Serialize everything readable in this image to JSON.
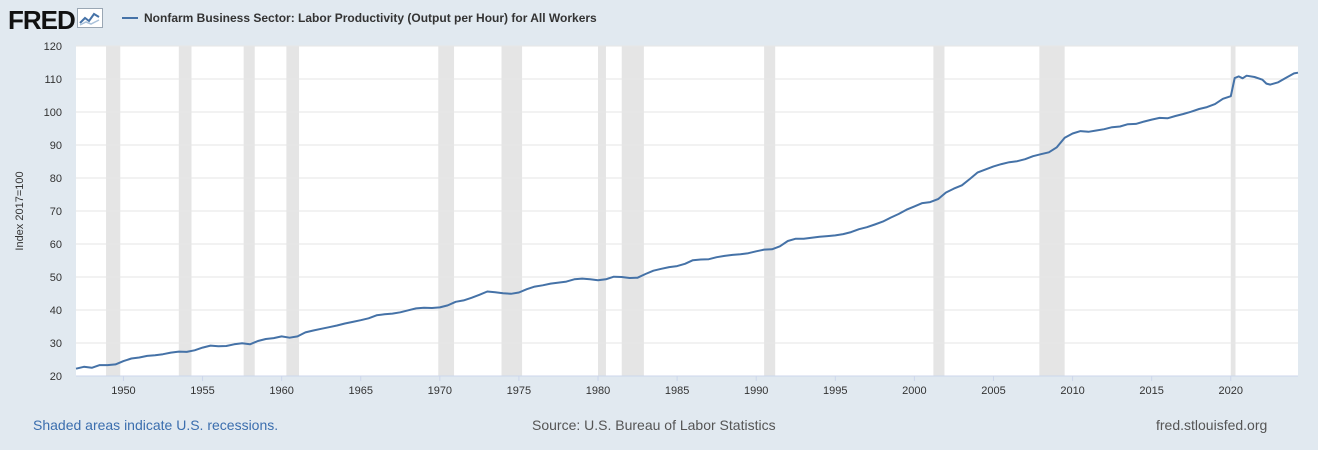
{
  "header": {
    "logo_text": "FRED",
    "logo_icon": "line-chart-icon",
    "series_label": "Nonfarm Business Sector: Labor Productivity (Output per Hour) for All Workers",
    "series_color": "#4572a7"
  },
  "footer": {
    "note": "Shaded areas indicate U.S. recessions.",
    "source": "Source: U.S. Bureau of Labor Statistics",
    "site": "fred.stlouisfed.org"
  },
  "colors": {
    "background": "#e1e9f0",
    "plot_background": "#ffffff",
    "recession_band": "#e5e5e5",
    "grid": "#e6e6e6",
    "link": "#3b6eae"
  },
  "chart_data": {
    "type": "line",
    "title": "",
    "xlabel": "",
    "ylabel": "Index 2017=100",
    "xlim": [
      1947.0,
      2024.25
    ],
    "ylim": [
      20,
      120
    ],
    "x_ticks": [
      1950,
      1955,
      1960,
      1965,
      1970,
      1975,
      1980,
      1985,
      1990,
      1995,
      2000,
      2005,
      2010,
      2015,
      2020
    ],
    "y_ticks": [
      20,
      30,
      40,
      50,
      60,
      70,
      80,
      90,
      100,
      110,
      120
    ],
    "grid": true,
    "legend": "top-left",
    "recessions": [
      [
        1948.9,
        1949.8
      ],
      [
        1953.5,
        1954.3
      ],
      [
        1957.6,
        1958.3
      ],
      [
        1960.3,
        1961.1
      ],
      [
        1969.9,
        1970.9
      ],
      [
        1973.9,
        1975.2
      ],
      [
        1980.0,
        1980.5
      ],
      [
        1981.5,
        1982.9
      ],
      [
        1990.5,
        1991.2
      ],
      [
        2001.2,
        2001.9
      ],
      [
        2007.9,
        2009.5
      ],
      [
        2020.0,
        2020.3
      ]
    ],
    "series": [
      {
        "name": "Nonfarm Business Sector: Labor Productivity (Output per Hour) for All Workers",
        "points": [
          [
            1947.0,
            22.2
          ],
          [
            1947.5,
            22.8
          ],
          [
            1948.0,
            22.5
          ],
          [
            1948.5,
            23.3
          ],
          [
            1949.0,
            23.3
          ],
          [
            1949.5,
            23.5
          ],
          [
            1950.0,
            24.5
          ],
          [
            1950.5,
            25.3
          ],
          [
            1951.0,
            25.6
          ],
          [
            1951.5,
            26.1
          ],
          [
            1952.0,
            26.3
          ],
          [
            1952.5,
            26.6
          ],
          [
            1953.0,
            27.1
          ],
          [
            1953.5,
            27.4
          ],
          [
            1954.0,
            27.3
          ],
          [
            1954.5,
            27.8
          ],
          [
            1955.0,
            28.6
          ],
          [
            1955.5,
            29.2
          ],
          [
            1956.0,
            29.0
          ],
          [
            1956.5,
            29.1
          ],
          [
            1957.0,
            29.6
          ],
          [
            1957.5,
            29.9
          ],
          [
            1958.0,
            29.6
          ],
          [
            1958.5,
            30.6
          ],
          [
            1959.0,
            31.2
          ],
          [
            1959.5,
            31.5
          ],
          [
            1960.0,
            32.0
          ],
          [
            1960.5,
            31.6
          ],
          [
            1961.0,
            32.0
          ],
          [
            1961.5,
            33.2
          ],
          [
            1962.0,
            33.8
          ],
          [
            1962.5,
            34.3
          ],
          [
            1963.0,
            34.8
          ],
          [
            1963.5,
            35.3
          ],
          [
            1964.0,
            35.9
          ],
          [
            1964.5,
            36.4
          ],
          [
            1965.0,
            36.9
          ],
          [
            1965.5,
            37.5
          ],
          [
            1966.0,
            38.4
          ],
          [
            1966.5,
            38.7
          ],
          [
            1967.0,
            38.9
          ],
          [
            1967.5,
            39.3
          ],
          [
            1968.0,
            39.9
          ],
          [
            1968.5,
            40.5
          ],
          [
            1969.0,
            40.7
          ],
          [
            1969.5,
            40.6
          ],
          [
            1970.0,
            40.8
          ],
          [
            1970.5,
            41.4
          ],
          [
            1971.0,
            42.5
          ],
          [
            1971.5,
            42.9
          ],
          [
            1972.0,
            43.7
          ],
          [
            1972.5,
            44.6
          ],
          [
            1973.0,
            45.6
          ],
          [
            1973.5,
            45.4
          ],
          [
            1974.0,
            45.1
          ],
          [
            1974.5,
            44.9
          ],
          [
            1975.0,
            45.3
          ],
          [
            1975.5,
            46.3
          ],
          [
            1976.0,
            47.1
          ],
          [
            1976.5,
            47.5
          ],
          [
            1977.0,
            48.0
          ],
          [
            1977.5,
            48.3
          ],
          [
            1978.0,
            48.6
          ],
          [
            1978.5,
            49.3
          ],
          [
            1979.0,
            49.5
          ],
          [
            1979.5,
            49.3
          ],
          [
            1980.0,
            49.0
          ],
          [
            1980.5,
            49.3
          ],
          [
            1981.0,
            50.1
          ],
          [
            1981.5,
            50.0
          ],
          [
            1982.0,
            49.7
          ],
          [
            1982.5,
            49.8
          ],
          [
            1983.0,
            50.9
          ],
          [
            1983.5,
            51.9
          ],
          [
            1984.0,
            52.5
          ],
          [
            1984.5,
            53.0
          ],
          [
            1985.0,
            53.3
          ],
          [
            1985.5,
            54.0
          ],
          [
            1986.0,
            55.1
          ],
          [
            1986.5,
            55.3
          ],
          [
            1987.0,
            55.4
          ],
          [
            1987.5,
            56.0
          ],
          [
            1988.0,
            56.4
          ],
          [
            1988.5,
            56.7
          ],
          [
            1989.0,
            56.9
          ],
          [
            1989.5,
            57.2
          ],
          [
            1990.0,
            57.8
          ],
          [
            1990.5,
            58.3
          ],
          [
            1991.0,
            58.4
          ],
          [
            1991.5,
            59.3
          ],
          [
            1992.0,
            60.9
          ],
          [
            1992.5,
            61.6
          ],
          [
            1993.0,
            61.6
          ],
          [
            1993.5,
            61.9
          ],
          [
            1994.0,
            62.2
          ],
          [
            1994.5,
            62.4
          ],
          [
            1995.0,
            62.6
          ],
          [
            1995.5,
            63.0
          ],
          [
            1996.0,
            63.6
          ],
          [
            1996.5,
            64.5
          ],
          [
            1997.0,
            65.1
          ],
          [
            1997.5,
            65.9
          ],
          [
            1998.0,
            66.8
          ],
          [
            1998.5,
            68.0
          ],
          [
            1999.0,
            69.1
          ],
          [
            1999.5,
            70.4
          ],
          [
            2000.0,
            71.4
          ],
          [
            2000.5,
            72.4
          ],
          [
            2001.0,
            72.7
          ],
          [
            2001.5,
            73.6
          ],
          [
            2002.0,
            75.6
          ],
          [
            2002.5,
            76.8
          ],
          [
            2003.0,
            77.8
          ],
          [
            2003.5,
            79.7
          ],
          [
            2004.0,
            81.7
          ],
          [
            2004.5,
            82.6
          ],
          [
            2005.0,
            83.5
          ],
          [
            2005.5,
            84.2
          ],
          [
            2006.0,
            84.8
          ],
          [
            2006.5,
            85.1
          ],
          [
            2007.0,
            85.7
          ],
          [
            2007.5,
            86.6
          ],
          [
            2008.0,
            87.2
          ],
          [
            2008.5,
            87.8
          ],
          [
            2009.0,
            89.3
          ],
          [
            2009.5,
            92.2
          ],
          [
            2010.0,
            93.5
          ],
          [
            2010.5,
            94.2
          ],
          [
            2011.0,
            94.0
          ],
          [
            2011.5,
            94.4
          ],
          [
            2012.0,
            94.8
          ],
          [
            2012.5,
            95.4
          ],
          [
            2013.0,
            95.6
          ],
          [
            2013.5,
            96.3
          ],
          [
            2014.0,
            96.4
          ],
          [
            2014.5,
            97.1
          ],
          [
            2015.0,
            97.7
          ],
          [
            2015.5,
            98.2
          ],
          [
            2016.0,
            98.1
          ],
          [
            2016.5,
            98.8
          ],
          [
            2017.0,
            99.4
          ],
          [
            2017.5,
            100.1
          ],
          [
            2018.0,
            100.9
          ],
          [
            2018.5,
            101.5
          ],
          [
            2019.0,
            102.4
          ],
          [
            2019.5,
            104.0
          ],
          [
            2020.0,
            104.8
          ],
          [
            2020.25,
            110.3
          ],
          [
            2020.5,
            110.8
          ],
          [
            2020.75,
            110.2
          ],
          [
            2021.0,
            111.0
          ],
          [
            2021.5,
            110.6
          ],
          [
            2022.0,
            109.8
          ],
          [
            2022.25,
            108.6
          ],
          [
            2022.5,
            108.3
          ],
          [
            2023.0,
            109.0
          ],
          [
            2023.5,
            110.4
          ],
          [
            2024.0,
            111.7
          ],
          [
            2024.25,
            111.9
          ]
        ]
      }
    ]
  }
}
